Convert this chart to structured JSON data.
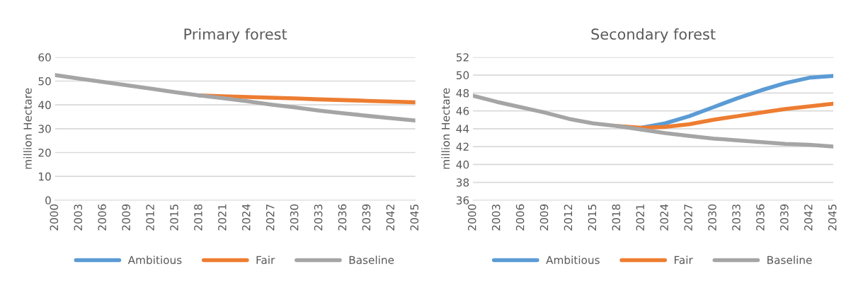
{
  "chart_data": [
    {
      "type": "line",
      "title": "Primary forest",
      "ylabel": "million Hectare",
      "x": [
        2000,
        2003,
        2006,
        2009,
        2012,
        2015,
        2018,
        2021,
        2024,
        2027,
        2030,
        2033,
        2036,
        2039,
        2042,
        2045
      ],
      "xlim": [
        2000,
        2045
      ],
      "xticks": [
        2000,
        2003,
        2006,
        2009,
        2012,
        2015,
        2018,
        2021,
        2024,
        2027,
        2030,
        2033,
        2036,
        2039,
        2042,
        2045
      ],
      "ylim": [
        0,
        60
      ],
      "yticks": [
        0,
        10,
        20,
        30,
        40,
        50,
        60
      ],
      "grid": "y",
      "legend": "bottom",
      "marker": "none",
      "line_style": "solid",
      "series": [
        {
          "name": "Ambitious",
          "color": "#5b9bd5",
          "values": [
            null,
            null,
            null,
            null,
            null,
            null,
            null,
            null,
            null,
            null,
            null,
            null,
            null,
            null,
            null,
            null
          ]
        },
        {
          "name": "Fair",
          "color": "#ed7d31",
          "values": [
            null,
            null,
            null,
            null,
            null,
            null,
            44,
            43.6,
            43.3,
            43.0,
            42.7,
            42.3,
            42.0,
            41.7,
            41.4,
            41.1
          ]
        },
        {
          "name": "Baseline",
          "color": "#a5a5a5",
          "values": [
            52.5,
            51,
            49.6,
            48.2,
            46.8,
            45.3,
            44,
            42.8,
            41.5,
            40.1,
            38.9,
            37.6,
            36.5,
            35.4,
            34.4,
            33.4
          ]
        }
      ]
    },
    {
      "type": "line",
      "title": "Secondary forest",
      "ylabel": "million Hectare",
      "x": [
        2000,
        2003,
        2006,
        2009,
        2012,
        2015,
        2018,
        2021,
        2024,
        2027,
        2030,
        2033,
        2036,
        2039,
        2042,
        2045
      ],
      "xlim": [
        2000,
        2045
      ],
      "xticks": [
        2000,
        2003,
        2006,
        2009,
        2012,
        2015,
        2018,
        2021,
        2024,
        2027,
        2030,
        2033,
        2036,
        2039,
        2042,
        2045
      ],
      "ylim": [
        36,
        52
      ],
      "yticks": [
        36,
        38,
        40,
        42,
        44,
        46,
        48,
        50,
        52
      ],
      "grid": "y",
      "legend": "bottom",
      "marker": "none",
      "line_style": "solid",
      "series": [
        {
          "name": "Ambitious",
          "color": "#5b9bd5",
          "values": [
            null,
            null,
            null,
            null,
            null,
            null,
            null,
            44.1,
            44.6,
            45.4,
            46.4,
            47.4,
            48.3,
            49.1,
            49.7,
            49.9
          ]
        },
        {
          "name": "Fair",
          "color": "#ed7d31",
          "values": [
            null,
            null,
            null,
            null,
            null,
            null,
            44.3,
            44.1,
            44.2,
            44.5,
            45.0,
            45.4,
            45.8,
            46.2,
            46.5,
            46.8
          ]
        },
        {
          "name": "Baseline",
          "color": "#a5a5a5",
          "values": [
            47.7,
            47.0,
            46.4,
            45.8,
            45.1,
            44.6,
            44.3,
            43.9,
            43.5,
            43.2,
            42.9,
            42.7,
            42.5,
            42.3,
            42.2,
            42.0
          ]
        }
      ]
    }
  ]
}
